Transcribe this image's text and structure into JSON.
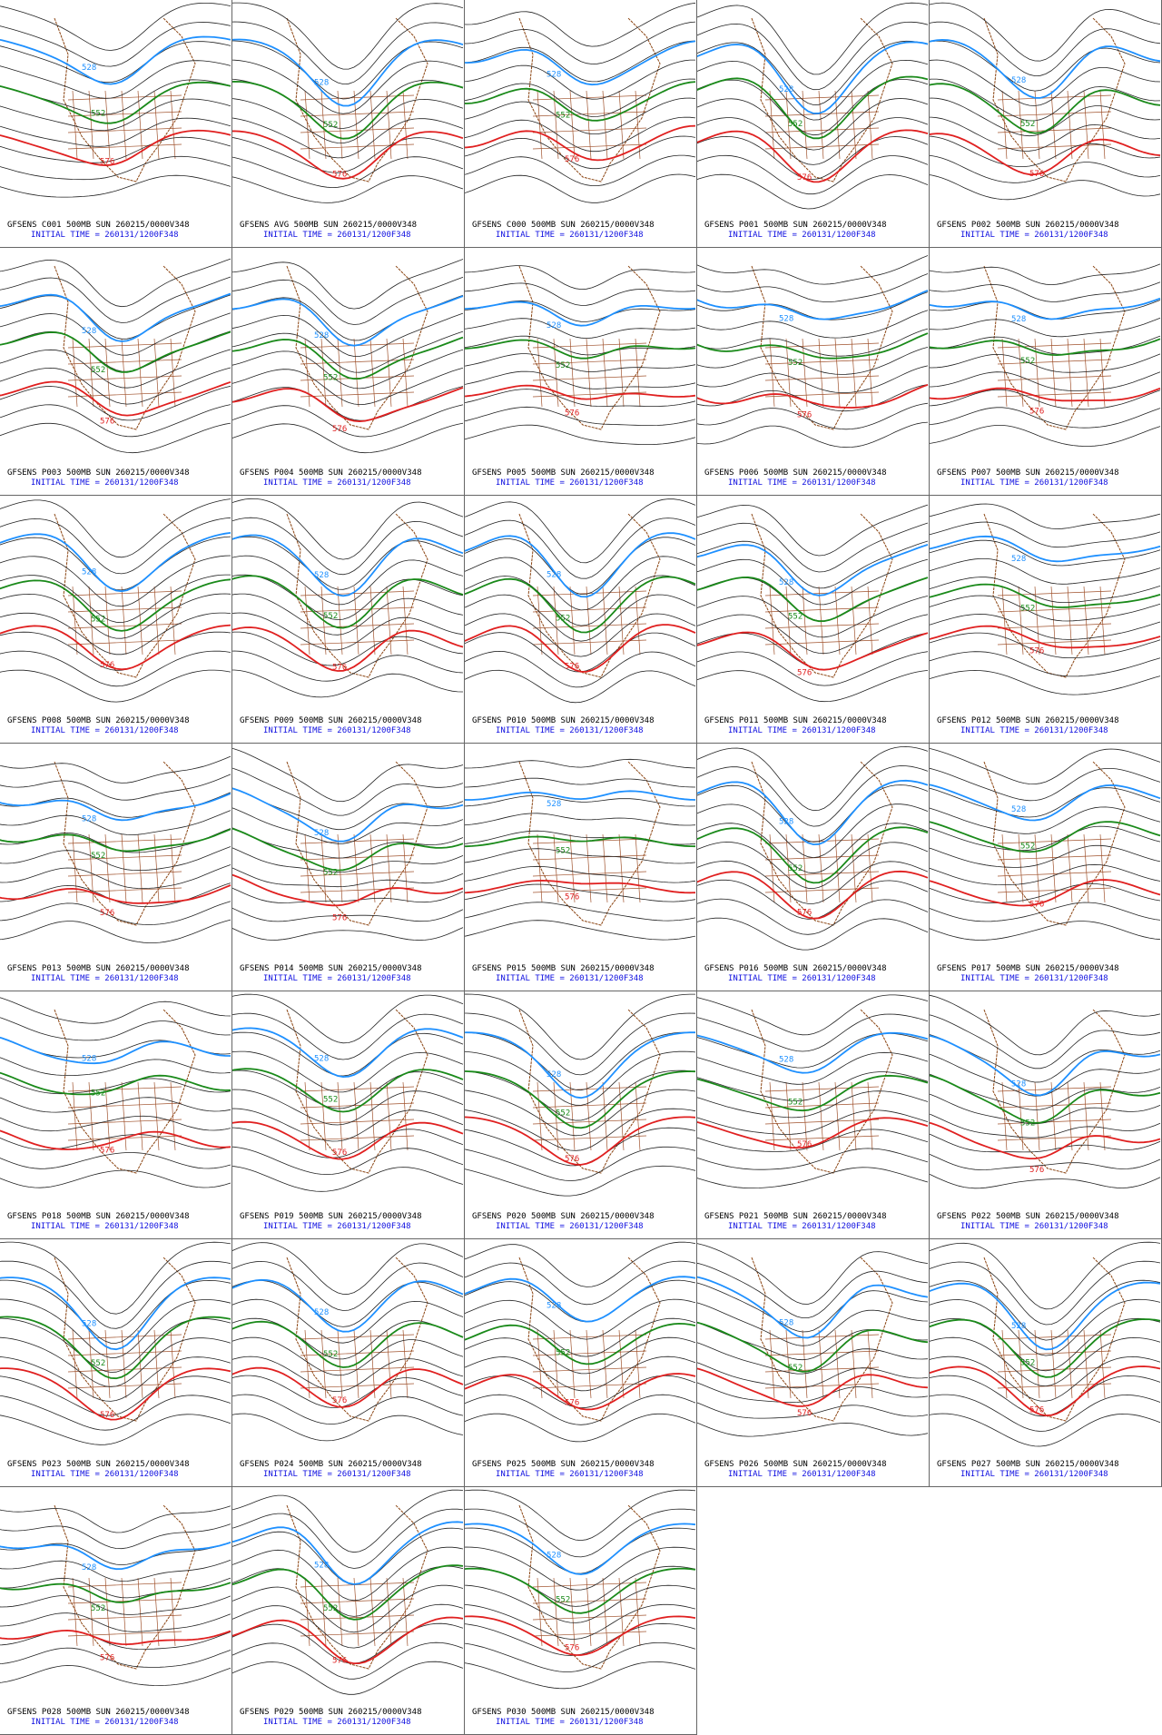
{
  "panels": [
    {
      "title": "GFSENS C001 500MB SUN 260215/0000V348",
      "init": "INITIAL TIME = 260131/1200F348",
      "labels": [
        "528",
        "552",
        "576"
      ]
    },
    {
      "title": "GFSENS AVG 500MB SUN 260215/0000V348",
      "init": "INITIAL TIME = 260131/1200F348",
      "labels": [
        "528",
        "552",
        "576"
      ]
    },
    {
      "title": "GFSENS C000 500MB SUN 260215/0000V348",
      "init": "INITIAL TIME = 260131/1200F348",
      "labels": [
        "528",
        "552",
        "576"
      ]
    },
    {
      "title": "GFSENS P001 500MB SUN 260215/0000V348",
      "init": "INITIAL TIME = 260131/1200F348",
      "labels": [
        "528",
        "552",
        "576"
      ]
    },
    {
      "title": "GFSENS P002 500MB SUN 260215/0000V348",
      "init": "INITIAL TIME = 260131/1200F348",
      "labels": [
        "528",
        "552",
        "576"
      ]
    },
    {
      "title": "GFSENS P003 500MB SUN 260215/0000V348",
      "init": "INITIAL TIME = 260131/1200F348",
      "labels": [
        "528",
        "552",
        "576"
      ]
    },
    {
      "title": "GFSENS P004 500MB SUN 260215/0000V348",
      "init": "INITIAL TIME = 260131/1200F348",
      "labels": [
        "528",
        "552",
        "576"
      ]
    },
    {
      "title": "GFSENS P005 500MB SUN 260215/0000V348",
      "init": "INITIAL TIME = 260131/1200F348",
      "labels": [
        "528",
        "552",
        "576"
      ]
    },
    {
      "title": "GFSENS P006 500MB SUN 260215/0000V348",
      "init": "INITIAL TIME = 260131/1200F348",
      "labels": [
        "528",
        "552",
        "576"
      ]
    },
    {
      "title": "GFSENS P007 500MB SUN 260215/0000V348",
      "init": "INITIAL TIME = 260131/1200F348",
      "labels": [
        "528",
        "552",
        "576"
      ]
    },
    {
      "title": "GFSENS P008 500MB SUN 260215/0000V348",
      "init": "INITIAL TIME = 260131/1200F348",
      "labels": [
        "528",
        "552",
        "576"
      ]
    },
    {
      "title": "GFSENS P009 500MB SUN 260215/0000V348",
      "init": "INITIAL TIME = 260131/1200F348",
      "labels": [
        "528",
        "552",
        "576"
      ]
    },
    {
      "title": "GFSENS P010 500MB SUN 260215/0000V348",
      "init": "INITIAL TIME = 260131/1200F348",
      "labels": [
        "528",
        "552",
        "576"
      ]
    },
    {
      "title": "GFSENS P011 500MB SUN 260215/0000V348",
      "init": "INITIAL TIME = 260131/1200F348",
      "labels": [
        "528",
        "552",
        "576"
      ]
    },
    {
      "title": "GFSENS P012 500MB SUN 260215/0000V348",
      "init": "INITIAL TIME = 260131/1200F348",
      "labels": [
        "528",
        "552",
        "576"
      ]
    },
    {
      "title": "GFSENS P013 500MB SUN 260215/0000V348",
      "init": "INITIAL TIME = 260131/1200F348",
      "labels": [
        "528",
        "552",
        "576"
      ]
    },
    {
      "title": "GFSENS P014 500MB SUN 260215/0000V348",
      "init": "INITIAL TIME = 260131/1200F348",
      "labels": [
        "528",
        "552",
        "576"
      ]
    },
    {
      "title": "GFSENS P015 500MB SUN 260215/0000V348",
      "init": "INITIAL TIME = 260131/1200F348",
      "labels": [
        "528",
        "552",
        "576"
      ]
    },
    {
      "title": "GFSENS P016 500MB SUN 260215/0000V348",
      "init": "INITIAL TIME = 260131/1200F348",
      "labels": [
        "528",
        "552",
        "576"
      ]
    },
    {
      "title": "GFSENS P017 500MB SUN 260215/0000V348",
      "init": "INITIAL TIME = 260131/1200F348",
      "labels": [
        "528",
        "552",
        "576"
      ]
    },
    {
      "title": "GFSENS P018 500MB SUN 260215/0000V348",
      "init": "INITIAL TIME = 260131/1200F348",
      "labels": [
        "528",
        "552",
        "576"
      ]
    },
    {
      "title": "GFSENS P019 500MB SUN 260215/0000V348",
      "init": "INITIAL TIME = 260131/1200F348",
      "labels": [
        "528",
        "552",
        "576"
      ]
    },
    {
      "title": "GFSENS P020 500MB SUN 260215/0000V348",
      "init": "INITIAL TIME = 260131/1200F348",
      "labels": [
        "528",
        "552",
        "576"
      ]
    },
    {
      "title": "GFSENS P021 500MB SUN 260215/0000V348",
      "init": "INITIAL TIME = 260131/1200F348",
      "labels": [
        "528",
        "552",
        "576"
      ]
    },
    {
      "title": "GFSENS P022 500MB SUN 260215/0000V348",
      "init": "INITIAL TIME = 260131/1200F348",
      "labels": [
        "528",
        "552",
        "576"
      ]
    },
    {
      "title": "GFSENS P023 500MB SUN 260215/0000V348",
      "init": "INITIAL TIME = 260131/1200F348",
      "labels": [
        "528",
        "552",
        "576"
      ]
    },
    {
      "title": "GFSENS P024 500MB SUN 260215/0000V348",
      "init": "INITIAL TIME = 260131/1200F348",
      "labels": [
        "528",
        "552",
        "576"
      ]
    },
    {
      "title": "GFSENS P025 500MB SUN 260215/0000V348",
      "init": "INITIAL TIME = 260131/1200F348",
      "labels": [
        "528",
        "552",
        "576"
      ]
    },
    {
      "title": "GFSENS P026 500MB SUN 260215/0000V348",
      "init": "INITIAL TIME = 260131/1200F348",
      "labels": [
        "528",
        "552",
        "576"
      ]
    },
    {
      "title": "GFSENS P027 500MB SUN 260215/0000V348",
      "init": "INITIAL TIME = 260131/1200F348",
      "labels": [
        "528",
        "552",
        "576"
      ]
    },
    {
      "title": "GFSENS P028 500MB SUN 260215/0000V348",
      "init": "INITIAL TIME = 260131/1200F348",
      "labels": [
        "528",
        "552",
        "576"
      ]
    },
    {
      "title": "GFSENS P029 500MB SUN 260215/0000V348",
      "init": "INITIAL TIME = 260131/1200F348",
      "labels": [
        "528",
        "552",
        "576"
      ]
    },
    {
      "title": "GFSENS P030 500MB SUN 260215/0000V348",
      "init": "INITIAL TIME = 260131/1200F348",
      "labels": [
        "528",
        "552",
        "576"
      ]
    }
  ]
}
